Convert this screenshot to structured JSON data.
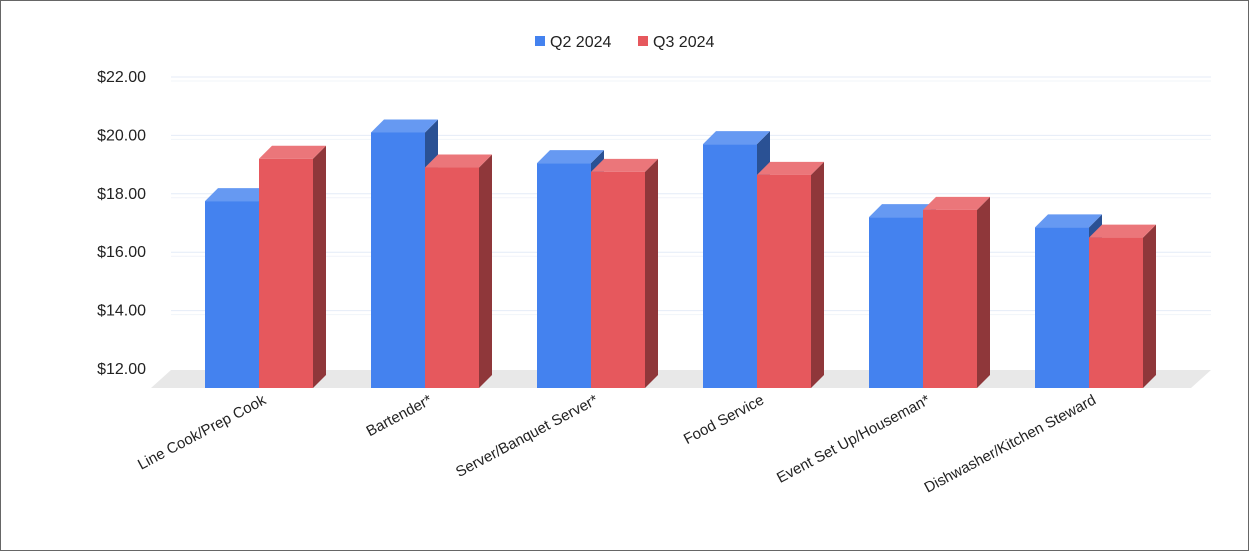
{
  "chart_data": {
    "type": "bar",
    "categories": [
      "Line Cook/Prep Cook",
      "Bartender*",
      "Server/Banquet Server*",
      "Food Service",
      "Event Set Up/Houseman*",
      "Dishwasher/Kitchen Steward"
    ],
    "series": [
      {
        "name": "Q2 2024",
        "color": "#4482ef",
        "values": [
          17.75,
          20.1,
          19.05,
          19.7,
          17.2,
          16.85
        ]
      },
      {
        "name": "Q3 2024",
        "color": "#e6585d",
        "values": [
          19.2,
          18.9,
          18.75,
          18.65,
          17.45,
          16.5
        ]
      }
    ],
    "ylim": [
      12,
      22
    ],
    "yticks": [
      "$12.00",
      "$14.00",
      "$16.00",
      "$18.00",
      "$20.00",
      "$22.00"
    ],
    "ytick_values": [
      12,
      14,
      16,
      18,
      20,
      22
    ],
    "legend_position": "top-center",
    "grid": true
  }
}
